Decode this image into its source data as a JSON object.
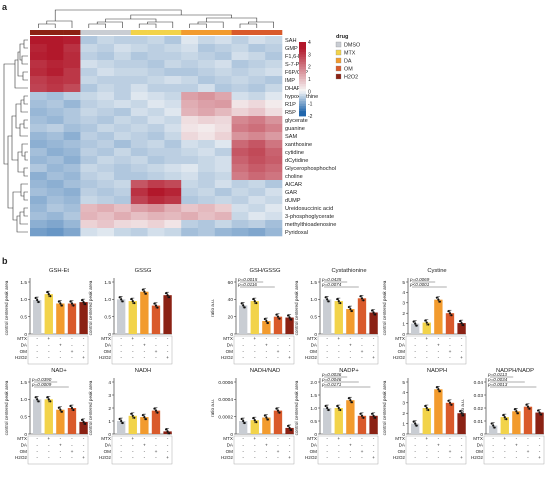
{
  "panel_a": {
    "label": "a",
    "legend": {
      "title": "drug",
      "scale_ticks": [
        "4",
        "3",
        "2",
        "1",
        "0",
        "-1",
        "-2"
      ],
      "entries": [
        {
          "name": "DMSO",
          "color": "#c9cdd3"
        },
        {
          "name": "MTX",
          "color": "#f2d34a"
        },
        {
          "name": "DA",
          "color": "#f29b2e"
        },
        {
          "name": "OM",
          "color": "#d95a2b"
        },
        {
          "name": "H2O2",
          "color": "#8b2214"
        }
      ]
    },
    "colors": {
      "low": "#2166ac",
      "mid": "#f7f7f7",
      "high": "#b2182b"
    }
  },
  "panel_b": {
    "label": "b",
    "colors": {
      "DMSO": "#c9cdd3",
      "MTX": "#f2d34a",
      "DA": "#f29b2e",
      "OM": "#d95a2b",
      "H2O2": "#8b2214"
    },
    "treat_rows": [
      "MTX",
      "DA",
      "OM",
      "H2O2"
    ],
    "treat_matrix": [
      [
        "-",
        "+",
        "-",
        "-",
        "-"
      ],
      [
        "-",
        "-",
        "+",
        "-",
        "-"
      ],
      [
        "-",
        "-",
        "-",
        "+",
        "-"
      ],
      [
        "-",
        "-",
        "-",
        "-",
        "+"
      ]
    ]
  },
  "chart_data": [
    {
      "type": "heatmap",
      "title": "",
      "rows": [
        "SAH",
        "GMP",
        "F1,6-P",
        "S-7-P",
        "F6P/G1P",
        "IMP",
        "DHAP",
        "hypoxanthine",
        "R1P",
        "R5P",
        "glycerate",
        "guanine",
        "SAM",
        "xanthosine",
        "cytidine",
        "dCytidine",
        "Glycerophosphochol",
        "choline",
        "AICAR",
        "GAR",
        "dUMP",
        "Ureidosuccinic acid",
        "3-phosphoglycerate",
        "methylthioadenosine",
        "Pyridoxal"
      ],
      "column_groups": [
        "H2O2",
        "H2O2",
        "H2O2",
        "DMSO",
        "DMSO",
        "DMSO",
        "MTX",
        "MTX",
        "MTX",
        "DA",
        "DA",
        "DA",
        "OM",
        "OM",
        "OM"
      ],
      "values": [
        [
          3.6,
          3.8,
          3.5,
          -0.6,
          -0.4,
          -0.5,
          -0.5,
          -0.4,
          -0.6,
          -0.2,
          -0.4,
          -0.3,
          -0.5,
          -0.3,
          -0.4
        ],
        [
          3.4,
          3.6,
          3.2,
          -0.4,
          -0.5,
          -0.3,
          -0.4,
          -0.5,
          -0.4,
          -0.3,
          -0.6,
          -0.5,
          -0.4,
          -0.6,
          -0.5
        ],
        [
          3.5,
          3.7,
          3.3,
          -0.5,
          -0.6,
          -0.4,
          -0.6,
          -0.5,
          -0.5,
          -0.4,
          -0.5,
          -0.6,
          -0.3,
          -0.4,
          -0.6
        ],
        [
          3.2,
          3.4,
          3.3,
          -0.3,
          -0.4,
          -0.5,
          -0.5,
          -0.6,
          -0.4,
          -0.5,
          -0.4,
          -0.3,
          -0.6,
          -0.5,
          -0.4
        ],
        [
          3.3,
          3.5,
          3.1,
          -0.5,
          -0.3,
          -0.4,
          -0.4,
          -0.5,
          -0.6,
          -0.6,
          -0.5,
          -0.4,
          -0.5,
          -0.4,
          -0.3
        ],
        [
          3.0,
          3.2,
          3.1,
          -0.4,
          -0.5,
          -0.5,
          -0.5,
          -0.4,
          -0.3,
          -0.4,
          -0.6,
          -0.5,
          -0.4,
          -0.5,
          -0.6
        ],
        [
          2.9,
          3.1,
          2.8,
          -0.6,
          -0.4,
          -0.5,
          -0.3,
          -0.5,
          -0.5,
          -0.5,
          -0.3,
          -0.6,
          -0.5,
          -0.6,
          -0.4
        ],
        [
          -0.6,
          -0.7,
          -0.5,
          -0.4,
          -0.3,
          -0.5,
          -0.2,
          -0.3,
          -0.4,
          1.4,
          1.6,
          1.3,
          -0.3,
          -0.4,
          -0.2
        ],
        [
          -0.7,
          -0.6,
          -0.8,
          -0.5,
          -0.4,
          -0.3,
          -0.4,
          -0.2,
          -0.3,
          1.2,
          1.4,
          1.5,
          0.3,
          0.5,
          0.2
        ],
        [
          -0.8,
          -0.7,
          -0.6,
          -0.4,
          -0.5,
          -0.6,
          -0.3,
          -0.4,
          -0.2,
          1.1,
          1.3,
          1.0,
          0.6,
          0.8,
          0.4
        ],
        [
          -0.7,
          -0.8,
          -0.6,
          -0.5,
          -0.6,
          -0.4,
          -0.5,
          -0.3,
          -0.4,
          0.4,
          0.6,
          0.5,
          1.8,
          2.0,
          1.6
        ],
        [
          -0.6,
          -0.5,
          -0.7,
          -0.6,
          -0.4,
          -0.5,
          -0.4,
          -0.5,
          -0.3,
          0.3,
          0.2,
          0.4,
          2.0,
          2.2,
          1.9
        ],
        [
          -0.8,
          -0.7,
          -0.9,
          -0.5,
          -0.6,
          -0.4,
          -0.5,
          -0.6,
          -0.4,
          0.5,
          0.3,
          0.6,
          1.6,
          1.8,
          1.5
        ],
        [
          -0.9,
          -0.8,
          -0.7,
          -0.6,
          -0.5,
          -0.7,
          -0.5,
          -0.4,
          -0.6,
          -0.3,
          -0.4,
          -0.2,
          2.3,
          2.6,
          2.1
        ],
        [
          -0.7,
          -0.9,
          -0.8,
          -0.5,
          -0.6,
          -0.4,
          -0.6,
          -0.5,
          -0.5,
          -0.4,
          -0.3,
          -0.5,
          2.6,
          2.8,
          2.4
        ],
        [
          -0.8,
          -0.7,
          -0.9,
          -0.6,
          -0.4,
          -0.5,
          -0.4,
          -0.6,
          -0.5,
          -0.5,
          -0.4,
          -0.3,
          2.4,
          2.7,
          2.5
        ],
        [
          -0.6,
          -0.8,
          -0.7,
          -0.4,
          -0.5,
          -0.6,
          -0.5,
          -0.4,
          -0.3,
          -0.2,
          -0.4,
          -0.3,
          2.2,
          2.5,
          2.3
        ],
        [
          -0.9,
          -0.7,
          -0.8,
          -0.5,
          -0.4,
          -0.6,
          -0.6,
          -0.5,
          -0.4,
          -0.3,
          -0.5,
          -0.4,
          2.0,
          2.3,
          2.1
        ],
        [
          -0.8,
          -0.9,
          -0.7,
          -0.6,
          -0.5,
          -0.4,
          2.6,
          3.0,
          2.8,
          -0.4,
          -0.5,
          -0.3,
          -0.5,
          -0.4,
          -0.6
        ],
        [
          -0.7,
          -0.8,
          -0.9,
          -0.5,
          -0.6,
          -0.5,
          3.2,
          3.6,
          3.4,
          -0.5,
          -0.4,
          -0.6,
          -0.4,
          -0.5,
          -0.3
        ],
        [
          -0.9,
          -0.7,
          -0.8,
          -0.4,
          -0.5,
          -0.6,
          2.9,
          3.3,
          3.1,
          -0.6,
          -0.5,
          -0.4,
          -0.5,
          -0.3,
          -0.4
        ],
        [
          -0.8,
          -0.6,
          -0.7,
          1.0,
          1.2,
          0.9,
          1.4,
          1.6,
          1.2,
          0.8,
          1.0,
          0.7,
          -0.3,
          -0.4,
          -0.2
        ],
        [
          -0.7,
          -0.8,
          -0.6,
          1.1,
          0.9,
          1.2,
          0.9,
          1.1,
          1.0,
          1.2,
          0.9,
          1.1,
          -0.4,
          -0.2,
          -0.3
        ],
        [
          -0.9,
          -1.0,
          -0.8,
          0.6,
          0.8,
          0.5,
          0.4,
          0.6,
          0.3,
          -0.5,
          -0.6,
          -0.4,
          -0.6,
          -0.5,
          -0.7
        ],
        [
          -1.1,
          -1.2,
          -1.0,
          -0.3,
          -0.2,
          -0.4,
          -0.5,
          -0.3,
          -0.4,
          -0.7,
          -0.6,
          -0.8,
          -0.9,
          -1.0,
          -0.8
        ]
      ],
      "scale_range": [
        -2,
        4
      ]
    },
    {
      "type": "bar",
      "title": "GSH-Et",
      "ylabel": "control centered peak area",
      "ylim": [
        0,
        1.5
      ],
      "yticks": [
        "0",
        "0.5",
        "1.0",
        "1.5"
      ],
      "values": [
        0.98,
        1.15,
        0.88,
        0.88,
        0.92
      ],
      "sig": []
    },
    {
      "type": "bar",
      "title": "GSSG",
      "ylabel": "control centered peak area",
      "ylim": [
        0,
        1.5
      ],
      "yticks": [
        "0",
        "0.5",
        "1.0",
        "1.5"
      ],
      "values": [
        1.0,
        0.95,
        1.22,
        0.82,
        1.12
      ],
      "sig": []
    },
    {
      "type": "bar",
      "title": "GSH/GSSG",
      "ylabel": "ratio a.u.",
      "ylim": [
        0,
        60
      ],
      "yticks": [
        "0",
        "20",
        "40",
        "60"
      ],
      "values": [
        33,
        38,
        15,
        20,
        19
      ],
      "sig": [
        "p=0.0015",
        "p=0.0116"
      ]
    },
    {
      "type": "bar",
      "title": "Cystathionine",
      "ylabel": "control centered peak area",
      "ylim": [
        0,
        1.5
      ],
      "yticks": [
        "0",
        "0.5",
        "1.0",
        "1.5"
      ],
      "values": [
        1.0,
        0.95,
        0.72,
        1.03,
        0.62
      ],
      "sig": [
        "p=0.0435",
        "p=0.0074"
      ]
    },
    {
      "type": "bar",
      "title": "Cystine",
      "ylabel": "control centered peak area",
      "ylim": [
        0,
        5
      ],
      "yticks": [
        "0",
        "1",
        "2",
        "3",
        "4",
        "5"
      ],
      "values": [
        1.0,
        1.1,
        3.3,
        2.0,
        1.05
      ],
      "sig": [
        "p=0.0069",
        "p<0.0001"
      ]
    },
    {
      "type": "bar",
      "title": "NAD+",
      "ylabel": "control centered peak area",
      "ylim": [
        0,
        1.5
      ],
      "yticks": [
        "0",
        "0.5",
        "1.0",
        "1.5"
      ],
      "values": [
        1.0,
        1.0,
        0.7,
        0.75,
        0.35
      ],
      "sig": [
        "p=0.0390",
        "p=0.0009"
      ]
    },
    {
      "type": "bar",
      "title": "NADH",
      "ylabel": "control centered peak area",
      "ylim": [
        0,
        4
      ],
      "yticks": [
        "0",
        "1",
        "2",
        "3",
        "4"
      ],
      "values": [
        1.0,
        1.4,
        1.3,
        1.8,
        0.2
      ],
      "sig": []
    },
    {
      "type": "bar",
      "title": "NADH/NAD",
      "ylabel": "ratio a.u.",
      "ylim": [
        0,
        0.0006
      ],
      "yticks": [
        "0",
        "0.0002",
        "0.0004",
        "0.0006"
      ],
      "values": [
        0.00015,
        0.00016,
        0.00019,
        0.00027,
        7e-05
      ],
      "sig": []
    },
    {
      "type": "bar",
      "title": "NADP+",
      "ylabel": "control centered peak area",
      "ylim": [
        0,
        2.0
      ],
      "yticks": [
        "0",
        "0.5",
        "1.0",
        "1.5",
        "2.0"
      ],
      "values": [
        1.0,
        1.0,
        1.3,
        0.7,
        0.7
      ],
      "sig": [
        "p=0.0036",
        "p=0.0046",
        "p=0.0171"
      ]
    },
    {
      "type": "bar",
      "title": "NADPH",
      "ylabel": "control centered peak area",
      "ylim": [
        0,
        5
      ],
      "yticks": [
        "0",
        "1",
        "2",
        "3",
        "4",
        "5"
      ],
      "values": [
        1.0,
        2.5,
        4.3,
        3.0,
        2.0
      ],
      "sig": []
    },
    {
      "type": "bar",
      "title": "NADPH/NADP",
      "ylabel": "ratio a.u.",
      "ylim": [
        0,
        0.04
      ],
      "yticks": [
        "0",
        "0.01",
        "0.02",
        "0.03",
        "0.04"
      ],
      "values": [
        0.0065,
        0.013,
        0.0175,
        0.021,
        0.0165
      ],
      "sig": [
        "p=0.0113",
        "p=0.0034",
        "p=0.0013"
      ]
    }
  ]
}
